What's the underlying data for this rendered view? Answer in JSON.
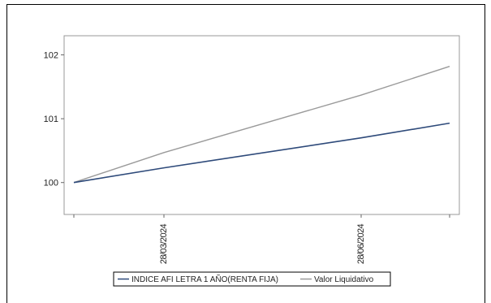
{
  "chart_data": {
    "type": "line",
    "x": [
      "",
      "28/03/2024",
      "28/06/2024",
      ""
    ],
    "x_tick_labels": [
      "28/03/2024",
      "28/06/2024"
    ],
    "ylim": [
      99.5,
      102.3
    ],
    "y_ticks": [
      100,
      101,
      102
    ],
    "y_tick_labels": [
      "100",
      "101",
      "102"
    ],
    "grid": false,
    "legend_placement": "bottom",
    "series": [
      {
        "name": "INDICE AFI LETRA 1 AÑO(RENTA FIJA)",
        "color": "#2e4a7a",
        "values": [
          100.0,
          100.23,
          100.7,
          100.93
        ]
      },
      {
        "name": "Valor Liquidativo",
        "color": "#9a9a9a",
        "values": [
          100.0,
          100.47,
          101.37,
          101.82
        ]
      }
    ]
  }
}
